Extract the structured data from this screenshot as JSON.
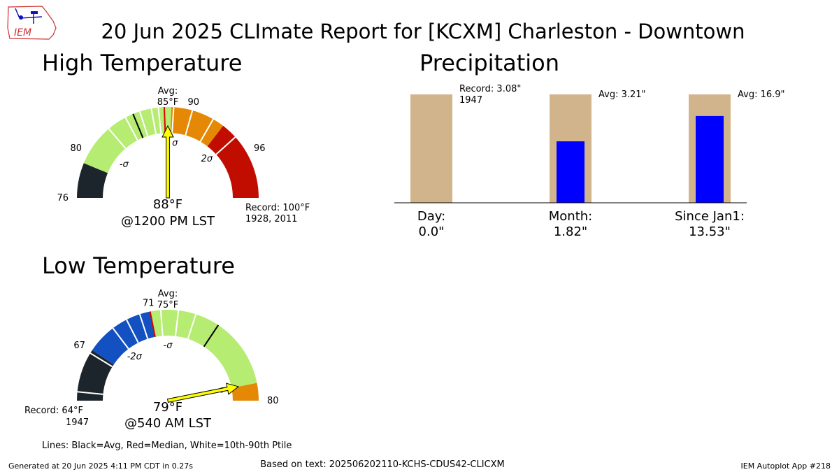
{
  "logo": {
    "text": "IEM"
  },
  "title": "20 Jun 2025 CLImate Report for [KCXM] Charleston - Downtown",
  "footer": {
    "generated": "Generated at 20 Jun 2025 4:11 PM CDT in 0.27s",
    "source": "Based on text: 202506202110-KCHS-CDUS42-CLICXM",
    "app": "IEM Autoplot App #218"
  },
  "legend_note": "Lines: Black=Avg, Red=Median, White=10th-90th Ptile",
  "high": {
    "heading": "High Temperature",
    "value_label": "88",
    "time_label": "@1200 PM LST",
    "avg_label": "Avg:",
    "avg_value_label": "85",
    "record_label": "Record: 100",
    "record_years": "1928, 2011",
    "unit": "°F"
  },
  "low": {
    "heading": "Low Temperature",
    "value_label": "79",
    "time_label": "@540 AM LST",
    "avg_label": "Avg:",
    "avg_value_label": "75",
    "record_label": "Record: 64",
    "record_years": "1947",
    "unit": "°F"
  },
  "precip": {
    "heading": "Precipitation",
    "ann0": "Record: 3.08\"",
    "ann0_year": "1947",
    "ann1": "Avg: 3.21\"",
    "ann2": "Avg: 16.9\"",
    "cat0": "Day:",
    "val0": "0.0\"",
    "cat1": "Month:",
    "val1": "1.82\"",
    "cat2": "Since Jan1:",
    "val2": "13.53\""
  },
  "chart_data": [
    {
      "type": "gauge",
      "title": "High Temperature",
      "unit": "°F",
      "range": [
        76,
        100
      ],
      "observed": 88,
      "observed_time": "@1200 PM LST",
      "average": 85,
      "median": 87.7,
      "record": 100,
      "record_years": "1928, 2011",
      "tick_labels": [
        {
          "value": 76,
          "label": "76"
        },
        {
          "value": 80,
          "label": "80"
        },
        {
          "value": 90,
          "label": "90"
        },
        {
          "value": 96,
          "label": "96"
        }
      ],
      "sigma_labels": [
        {
          "value": 81,
          "label": "-σ"
        },
        {
          "value": 89,
          "label": "σ"
        },
        {
          "value": 94,
          "label": "2σ"
        }
      ],
      "bands": [
        {
          "from": 76,
          "to": 79,
          "color": "#1c252c"
        },
        {
          "from": 79,
          "to": 88.3,
          "color": "#b6ec72"
        },
        {
          "from": 88.3,
          "to": 93,
          "color": "#e48805"
        },
        {
          "from": 93,
          "to": 100,
          "color": "#c10d00"
        }
      ],
      "percentile_lines": [
        82.6,
        84.3,
        85.6,
        86.6,
        87.2,
        88.5,
        90.1,
        92.0,
        94.4
      ]
    },
    {
      "type": "gauge",
      "title": "Low Temperature",
      "unit": "°F",
      "range": [
        64,
        80
      ],
      "observed": 79,
      "observed_time": "@540 AM LST",
      "average": 75,
      "median": 71,
      "record": 64,
      "record_years": "1947",
      "tick_labels": [
        {
          "value": 67,
          "label": "67"
        },
        {
          "value": 71,
          "label": "71"
        },
        {
          "value": 80,
          "label": "80"
        }
      ],
      "sigma_labels": [
        {
          "value": 72,
          "label": "-σ"
        },
        {
          "value": 79,
          "label": "σ"
        },
        {
          "value": 68.7,
          "label": "-2σ"
        }
      ],
      "bands": [
        {
          "from": 64,
          "to": 67,
          "color": "#1c252c"
        },
        {
          "from": 67,
          "to": 71,
          "color": "#1350c1"
        },
        {
          "from": 71,
          "to": 79,
          "color": "#b6ec72"
        },
        {
          "from": 79,
          "to": 80,
          "color": "#e48805"
        }
      ],
      "percentile_lines": [
        64.5,
        66.8,
        68.7,
        69.6,
        70.4,
        71.6,
        72.6,
        73.6
      ]
    },
    {
      "type": "bar",
      "title": "Precipitation",
      "categories": [
        "Day:",
        "Month:",
        "Since Jan1:"
      ],
      "series": [
        {
          "values": [
            0.0,
            1.82,
            13.53
          ],
          "color": "#0000ff"
        }
      ],
      "record": {
        "Day:": 3.08
      },
      "record_year": "1947",
      "averages": {
        "Month:": 3.21,
        "Since Jan1:": 16.9
      },
      "background_color": "#d2b48c",
      "scale": "each bar relative to its own record/average"
    }
  ]
}
